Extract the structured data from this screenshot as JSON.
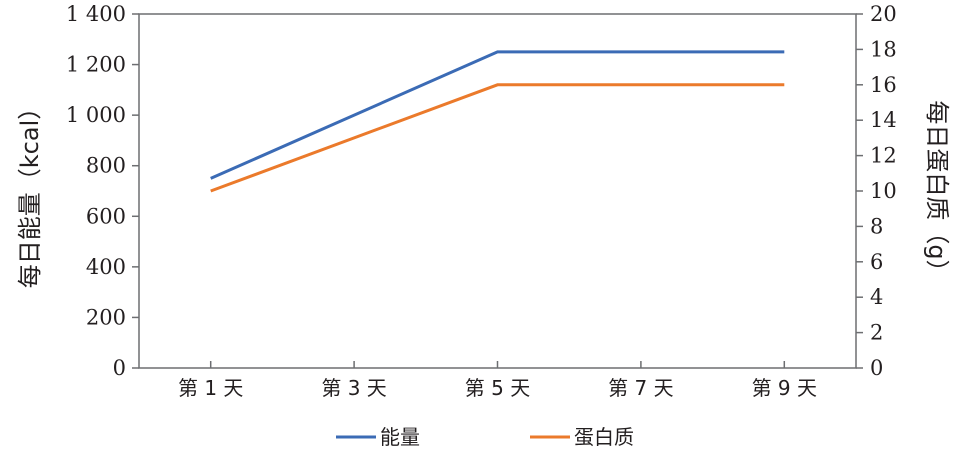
{
  "chart_data": {
    "type": "line",
    "categories": [
      "第 1 天",
      "第 3 天",
      "第 5 天",
      "第 7 天",
      "第 9 天"
    ],
    "x": [
      1,
      3,
      5,
      7,
      9
    ],
    "y_left": {
      "label": "每日能量（kcal）",
      "ylim": [
        0,
        1400
      ],
      "ticks": [
        0,
        200,
        400,
        600,
        800,
        1000,
        1200,
        1400
      ],
      "tick_labels": [
        "0",
        "200",
        "400",
        "600",
        "800",
        "1 000",
        "1 200",
        "1 400"
      ]
    },
    "y_right": {
      "label": "每日蛋白质（g）",
      "ylim": [
        0,
        20
      ],
      "ticks": [
        0,
        2,
        4,
        6,
        8,
        10,
        12,
        14,
        16,
        18,
        20
      ],
      "tick_labels": [
        "0",
        "2",
        "4",
        "6",
        "8",
        "10",
        "12",
        "14",
        "16",
        "18",
        "20"
      ]
    },
    "series": [
      {
        "name": "能量",
        "axis": "left",
        "color": "#3b6bb5",
        "points": [
          [
            1,
            750
          ],
          [
            5,
            1250
          ],
          [
            9,
            1250
          ]
        ]
      },
      {
        "name": "蛋白质",
        "axis": "right",
        "color": "#eb7a2b",
        "points": [
          [
            1,
            10
          ],
          [
            5,
            16
          ],
          [
            9,
            16
          ]
        ]
      }
    ],
    "grid": false,
    "legend_position": "bottom"
  }
}
